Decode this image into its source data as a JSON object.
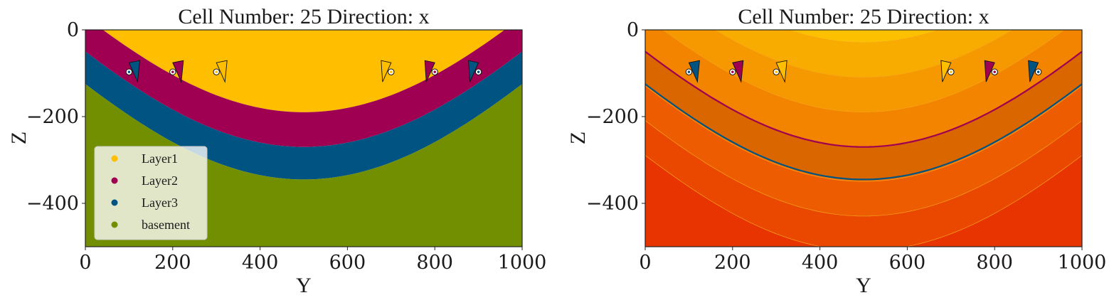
{
  "colors": {
    "Layer1": "#ffbe00",
    "Layer2": "#9f0052",
    "Layer3": "#015482",
    "basement": "#728f02",
    "scalar_low": "#ffd400",
    "scalar_high": "#e73400"
  },
  "chart_data": [
    {
      "type": "heatmap",
      "title": "Cell Number: 25 Direction: x",
      "xlabel": "Y",
      "ylabel": "Z",
      "xlim": [
        0,
        1000
      ],
      "ylim": [
        -500,
        0
      ],
      "xticks": [
        "0",
        "200",
        "400",
        "600",
        "800",
        "1000"
      ],
      "yticks": [
        "0",
        "−200",
        "−400"
      ],
      "grid": false,
      "legend_placement": "bottom-left",
      "legend": [
        "Layer1",
        "Layer2",
        "Layer3",
        "basement"
      ],
      "surfaces": [
        {
          "name": "Layer2",
          "top_y_at_x500": -190
        },
        {
          "name": "Layer3",
          "top_y_at_x500": -270
        },
        {
          "name": "basement",
          "top_y_at_x500": -345
        }
      ],
      "surface_points": [
        {
          "x": 100,
          "y": -97,
          "series": "Layer3"
        },
        {
          "x": 200,
          "y": -97,
          "series": "Layer2"
        },
        {
          "x": 300,
          "y": -97,
          "series": "Layer1"
        },
        {
          "x": 700,
          "y": -97,
          "series": "Layer1"
        },
        {
          "x": 800,
          "y": -97,
          "series": "Layer2"
        },
        {
          "x": 900,
          "y": -97,
          "series": "Layer3"
        }
      ]
    },
    {
      "type": "heatmap",
      "title": "Cell Number: 25 Direction: x",
      "xlabel": "Y",
      "ylabel": "Z",
      "xlim": [
        0,
        1000
      ],
      "ylim": [
        -500,
        0
      ],
      "xticks": [
        "0",
        "200",
        "400",
        "600",
        "800",
        "1000"
      ],
      "yticks": [
        "0",
        "−200",
        "−400"
      ],
      "grid": false,
      "contour_offsets": [
        -240,
        -160,
        -80,
        0,
        80,
        160,
        240,
        320
      ],
      "boundary_offsets": [
        {
          "series": "Layer2",
          "offset": 80
        },
        {
          "series": "Layer3",
          "offset": 155
        }
      ],
      "surface_points": [
        {
          "x": 100,
          "y": -97,
          "series": "Layer3"
        },
        {
          "x": 200,
          "y": -97,
          "series": "Layer2"
        },
        {
          "x": 300,
          "y": -97,
          "series": "Layer1"
        },
        {
          "x": 700,
          "y": -97,
          "series": "Layer1"
        },
        {
          "x": 800,
          "y": -97,
          "series": "Layer2"
        },
        {
          "x": 900,
          "y": -97,
          "series": "Layer3"
        }
      ]
    }
  ]
}
